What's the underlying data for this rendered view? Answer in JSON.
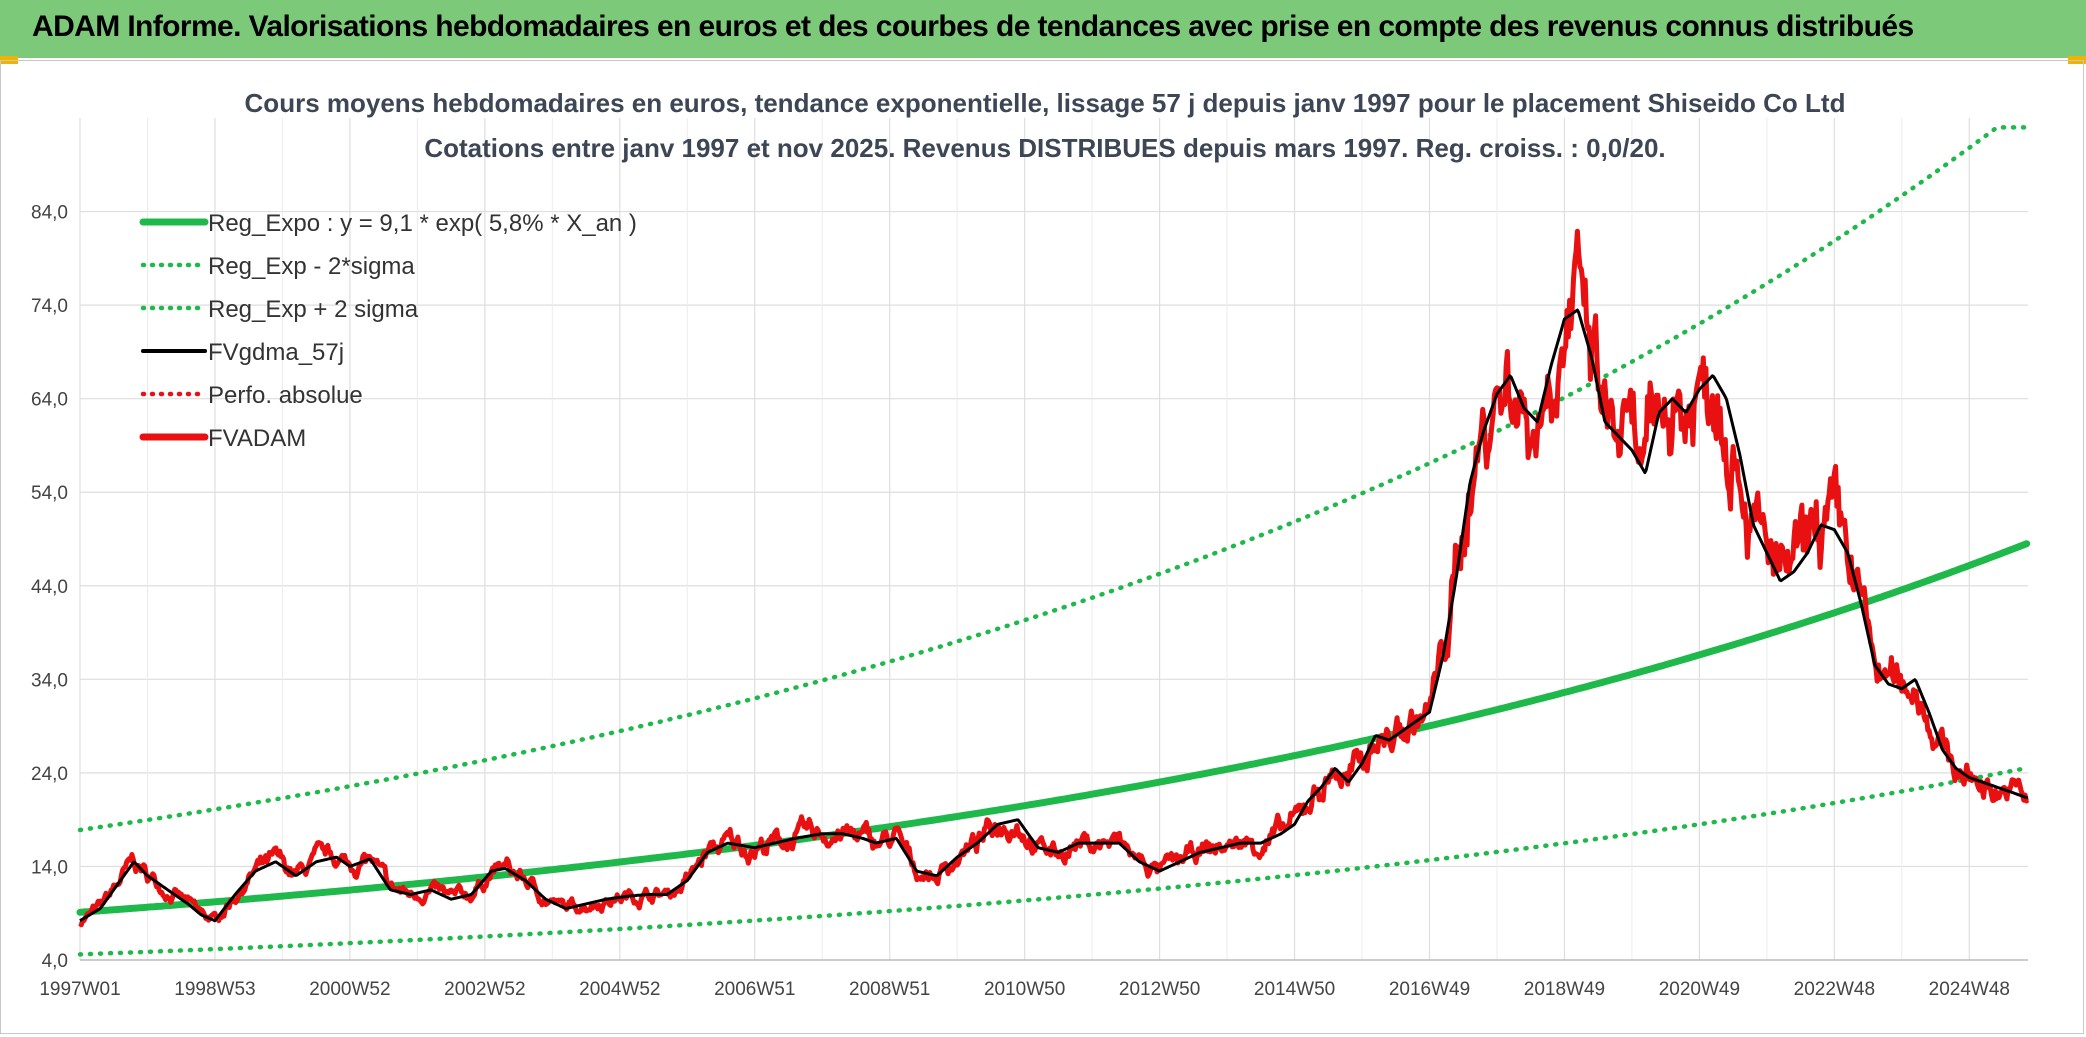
{
  "header": {
    "title": "ADAM Informe. Valorisations hebdomadaires en euros et des courbes de tendances avec prise en compte des revenus connus distribués"
  },
  "chart_data": {
    "type": "line",
    "title": "Cours moyens hebdomadaires en euros, tendance exponentielle, lissage 57 j depuis janv 1997 pour le placement Shiseido Co Ltd",
    "subtitle": "Cotations entre janv 1997 et nov 2025. Revenus DISTRIBUES depuis mars 1997. Reg. croiss. : 0,0/20.",
    "xlabel": "",
    "ylabel": "",
    "xlim": [
      1997.0,
      2025.87
    ],
    "ylim": [
      4,
      94
    ],
    "y_ticks": [
      "4,0",
      "14,0",
      "24,0",
      "34,0",
      "44,0",
      "54,0",
      "64,0",
      "74,0",
      "84,0"
    ],
    "x_ticks": [
      {
        "label": "1997W01",
        "x": 1997.0
      },
      {
        "label": "1998W53",
        "x": 1999.0
      },
      {
        "label": "2000W52",
        "x": 2001.0
      },
      {
        "label": "2002W52",
        "x": 2003.0
      },
      {
        "label": "2004W52",
        "x": 2005.0
      },
      {
        "label": "2006W51",
        "x": 2007.0
      },
      {
        "label": "2008W51",
        "x": 2009.0
      },
      {
        "label": "2010W50",
        "x": 2011.0
      },
      {
        "label": "2012W50",
        "x": 2013.0
      },
      {
        "label": "2014W50",
        "x": 2015.0
      },
      {
        "label": "2016W49",
        "x": 2017.0
      },
      {
        "label": "2018W49",
        "x": 2019.0
      },
      {
        "label": "2020W49",
        "x": 2021.0
      },
      {
        "label": "2022W48",
        "x": 2023.0
      },
      {
        "label": "2024W48",
        "x": 2025.0
      }
    ],
    "grid": true,
    "legend_position": "top-left",
    "regression": {
      "a": 9.1,
      "rate": 0.058,
      "lower_at_start": 4.6,
      "upper_at_start": 17.9,
      "upper_cap": 93
    },
    "series": [
      {
        "name": "Reg_Expo : y = 9,1 * exp( 5,8% *  X_an )",
        "color": "#1fb84a",
        "style": "solid-thick"
      },
      {
        "name": "Reg_Exp - 2*sigma",
        "color": "#1fb84a",
        "style": "dotted"
      },
      {
        "name": "Reg_Exp + 2 sigma",
        "color": "#1fb84a",
        "style": "dotted"
      },
      {
        "name": "FVgdma_57j",
        "color": "#000000",
        "style": "solid",
        "x": [
          1997.0,
          1997.3,
          1997.6,
          1997.8,
          1998.0,
          1998.3,
          1998.6,
          1998.8,
          1999.0,
          1999.3,
          1999.6,
          1999.9,
          2000.2,
          2000.5,
          2000.8,
          2001.0,
          2001.3,
          2001.6,
          2001.9,
          2002.2,
          2002.5,
          2002.8,
          2003.1,
          2003.3,
          2003.6,
          2003.9,
          2004.2,
          2004.5,
          2004.8,
          2005.1,
          2005.4,
          2005.7,
          2006.0,
          2006.3,
          2006.6,
          2007.0,
          2007.3,
          2007.6,
          2008.0,
          2008.3,
          2008.6,
          2008.8,
          2009.1,
          2009.4,
          2009.7,
          2010.0,
          2010.3,
          2010.6,
          2010.9,
          2011.2,
          2011.5,
          2011.8,
          2012.1,
          2012.4,
          2012.7,
          2013.0,
          2013.3,
          2013.6,
          2013.9,
          2014.2,
          2014.5,
          2014.8,
          2015.0,
          2015.2,
          2015.4,
          2015.6,
          2015.8,
          2016.0,
          2016.2,
          2016.4,
          2016.6,
          2016.8,
          2017.0,
          2017.2,
          2017.4,
          2017.6,
          2017.8,
          2018.0,
          2018.2,
          2018.4,
          2018.6,
          2018.8,
          2019.0,
          2019.2,
          2019.4,
          2019.6,
          2019.8,
          2020.0,
          2020.2,
          2020.4,
          2020.6,
          2020.8,
          2021.0,
          2021.2,
          2021.4,
          2021.6,
          2021.8,
          2022.0,
          2022.2,
          2022.4,
          2022.6,
          2022.8,
          2023.0,
          2023.2,
          2023.4,
          2023.6,
          2023.8,
          2024.0,
          2024.2,
          2024.4,
          2024.6,
          2024.8,
          2025.0,
          2025.2,
          2025.4,
          2025.6,
          2025.87
        ],
        "y": [
          8.2,
          9.5,
          12.5,
          14.5,
          13.0,
          11.5,
          10.0,
          8.8,
          8.2,
          11.0,
          13.5,
          14.5,
          13.0,
          14.5,
          15.0,
          14.0,
          14.8,
          11.5,
          11.0,
          11.5,
          10.5,
          11.0,
          13.5,
          13.8,
          12.5,
          10.5,
          9.5,
          10.0,
          10.5,
          10.8,
          11.0,
          11.0,
          12.5,
          15.5,
          16.5,
          16.0,
          16.5,
          17.0,
          17.5,
          17.5,
          17.0,
          16.5,
          17.0,
          13.5,
          13.0,
          15.0,
          16.5,
          18.5,
          19.0,
          16.0,
          15.5,
          16.5,
          16.5,
          16.5,
          14.5,
          13.5,
          14.5,
          15.5,
          16.0,
          16.5,
          16.5,
          17.5,
          18.5,
          21.0,
          22.5,
          24.5,
          23.0,
          25.0,
          28.0,
          27.5,
          28.5,
          29.5,
          30.5,
          36.5,
          45.0,
          55.0,
          60.5,
          64.5,
          66.5,
          63.0,
          61.5,
          67.5,
          72.5,
          73.5,
          68.5,
          61.5,
          60.0,
          58.5,
          56.0,
          62.5,
          64.0,
          62.5,
          65.0,
          66.5,
          64.0,
          58.0,
          50.5,
          47.5,
          44.5,
          45.5,
          47.5,
          50.5,
          50.0,
          47.5,
          42.0,
          35.5,
          33.5,
          33.0,
          34.0,
          30.5,
          26.5,
          24.5,
          23.5,
          23.0,
          22.5,
          22.0,
          21.3
        ]
      },
      {
        "name": "Perfo. absolue",
        "color": "#e81010",
        "style": "dotted"
      },
      {
        "name": "FVADAM",
        "color": "#e81010",
        "style": "solid-thick"
      }
    ]
  }
}
